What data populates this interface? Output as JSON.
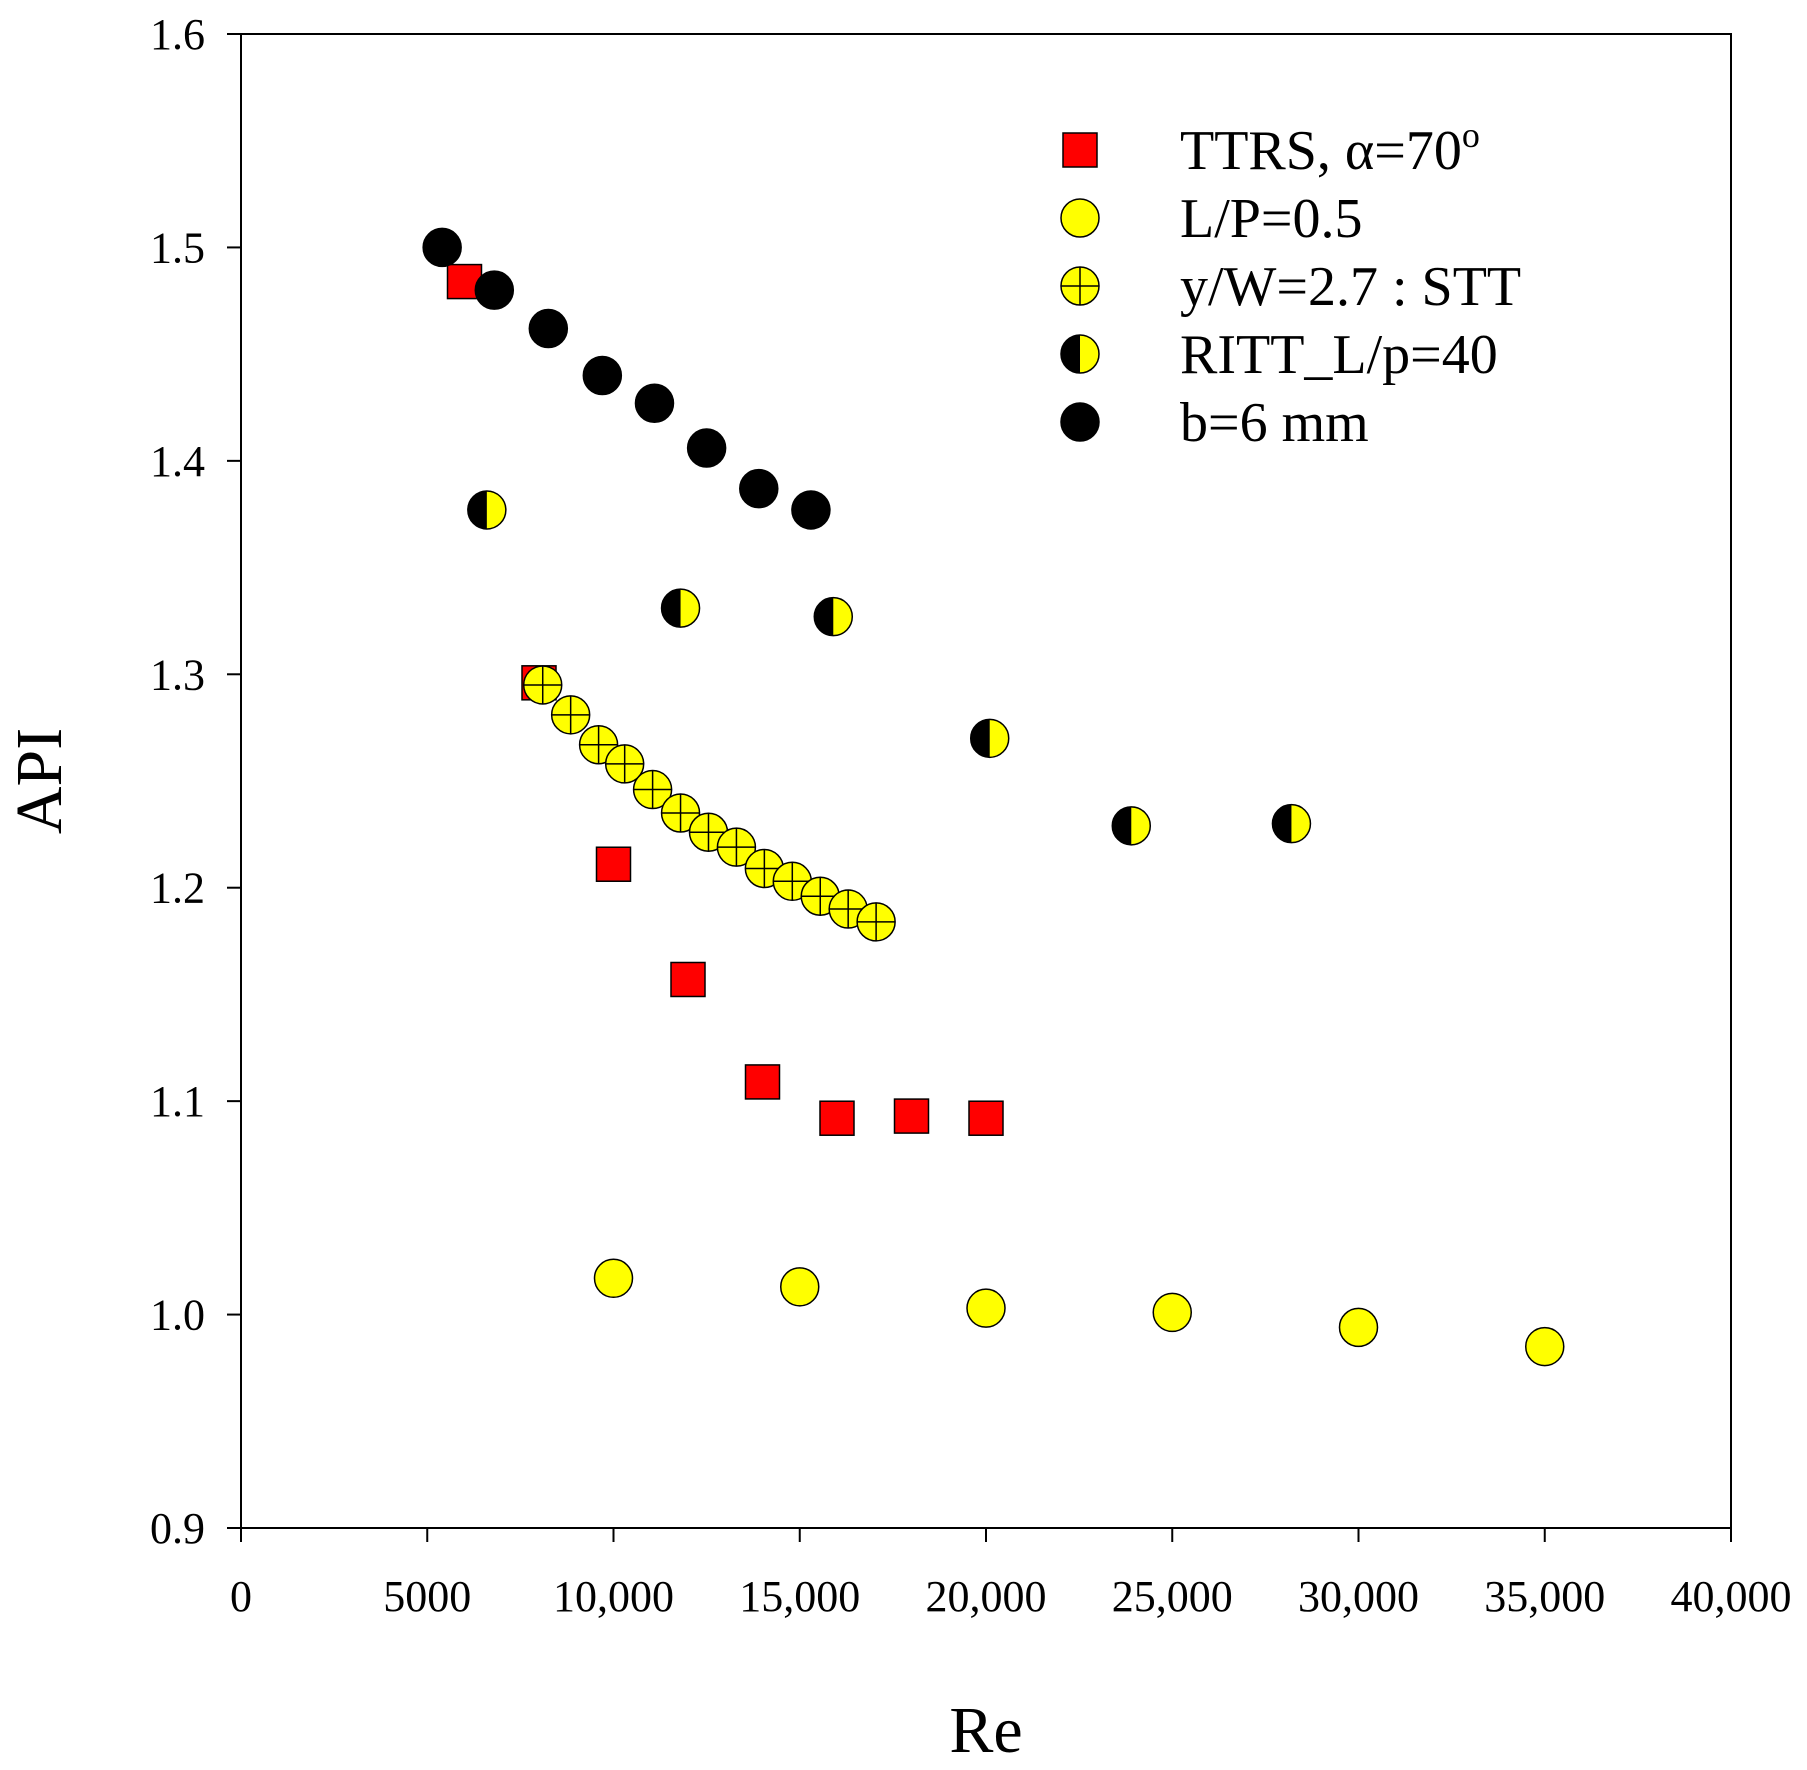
{
  "chart_data": {
    "type": "scatter",
    "title": "",
    "xlabel": "Re",
    "ylabel": "API",
    "xlim": [
      0,
      40000
    ],
    "ylim": [
      0.9,
      1.6
    ],
    "grid": false,
    "legend_position": "top-right",
    "x_ticks": [
      {
        "value": 0,
        "label": "0"
      },
      {
        "value": 5000,
        "label": "5000"
      },
      {
        "value": 10000,
        "label": "10,000"
      },
      {
        "value": 15000,
        "label": "15,000"
      },
      {
        "value": 20000,
        "label": "20,000"
      },
      {
        "value": 25000,
        "label": "25,000"
      },
      {
        "value": 30000,
        "label": "30,000"
      },
      {
        "value": 35000,
        "label": "35,000"
      },
      {
        "value": 40000,
        "label": "40,000"
      }
    ],
    "y_ticks": [
      {
        "value": 0.9,
        "label": "0.9"
      },
      {
        "value": 1.0,
        "label": "1.0"
      },
      {
        "value": 1.1,
        "label": "1.1"
      },
      {
        "value": 1.2,
        "label": "1.2"
      },
      {
        "value": 1.3,
        "label": "1.3"
      },
      {
        "value": 1.4,
        "label": "1.4"
      },
      {
        "value": 1.5,
        "label": "1.5"
      },
      {
        "value": 1.6,
        "label": "1.6"
      }
    ],
    "series": [
      {
        "name": "TTRS, α=70°",
        "label_main": "TTRS, α=70",
        "label_sup": "o",
        "marker": "square",
        "color": "#ff0000",
        "points": [
          {
            "x": 6000,
            "y": 1.484
          },
          {
            "x": 8000,
            "y": 1.296
          },
          {
            "x": 10000,
            "y": 1.211
          },
          {
            "x": 12000,
            "y": 1.157
          },
          {
            "x": 14000,
            "y": 1.109
          },
          {
            "x": 16000,
            "y": 1.092
          },
          {
            "x": 18000,
            "y": 1.093
          },
          {
            "x": 20000,
            "y": 1.092
          }
        ]
      },
      {
        "name": "L/P=0.5",
        "label_main": "L/P=0.5",
        "label_sup": "",
        "marker": "circle",
        "color": "#ffff00",
        "points": [
          {
            "x": 10000,
            "y": 1.017
          },
          {
            "x": 15000,
            "y": 1.013
          },
          {
            "x": 20000,
            "y": 1.003
          },
          {
            "x": 25000,
            "y": 1.001
          },
          {
            "x": 30000,
            "y": 0.994
          },
          {
            "x": 35000,
            "y": 0.985
          }
        ]
      },
      {
        "name": "y/W=2.7 : STT",
        "label_main": "y/W=2.7 : STT",
        "label_sup": "",
        "marker": "circle-cross",
        "color": "#ffff00",
        "points": [
          {
            "x": 8100,
            "y": 1.295
          },
          {
            "x": 8850,
            "y": 1.281
          },
          {
            "x": 9600,
            "y": 1.267
          },
          {
            "x": 10300,
            "y": 1.258
          },
          {
            "x": 11050,
            "y": 1.246
          },
          {
            "x": 11800,
            "y": 1.235
          },
          {
            "x": 12550,
            "y": 1.226
          },
          {
            "x": 13300,
            "y": 1.219
          },
          {
            "x": 14050,
            "y": 1.209
          },
          {
            "x": 14800,
            "y": 1.203
          },
          {
            "x": 15550,
            "y": 1.196
          },
          {
            "x": 16300,
            "y": 1.19
          },
          {
            "x": 17050,
            "y": 1.184
          }
        ]
      },
      {
        "name": "RITT_L/p=40",
        "label_main": "RITT_L/p=40",
        "label_sup": "",
        "marker": "half-circle",
        "color": "#ffff00",
        "points": [
          {
            "x": 6600,
            "y": 1.377
          },
          {
            "x": 11800,
            "y": 1.331
          },
          {
            "x": 15900,
            "y": 1.327
          },
          {
            "x": 20100,
            "y": 1.27
          },
          {
            "x": 23900,
            "y": 1.229
          },
          {
            "x": 28200,
            "y": 1.23
          }
        ]
      },
      {
        "name": "b=6 mm",
        "label_main": "b=6 mm",
        "label_sup": "",
        "marker": "circle",
        "color": "#000000",
        "points": [
          {
            "x": 5400,
            "y": 1.5
          },
          {
            "x": 6800,
            "y": 1.48
          },
          {
            "x": 8250,
            "y": 1.462
          },
          {
            "x": 9700,
            "y": 1.44
          },
          {
            "x": 11100,
            "y": 1.427
          },
          {
            "x": 12500,
            "y": 1.406
          },
          {
            "x": 13900,
            "y": 1.387
          },
          {
            "x": 15300,
            "y": 1.377
          }
        ]
      }
    ]
  }
}
